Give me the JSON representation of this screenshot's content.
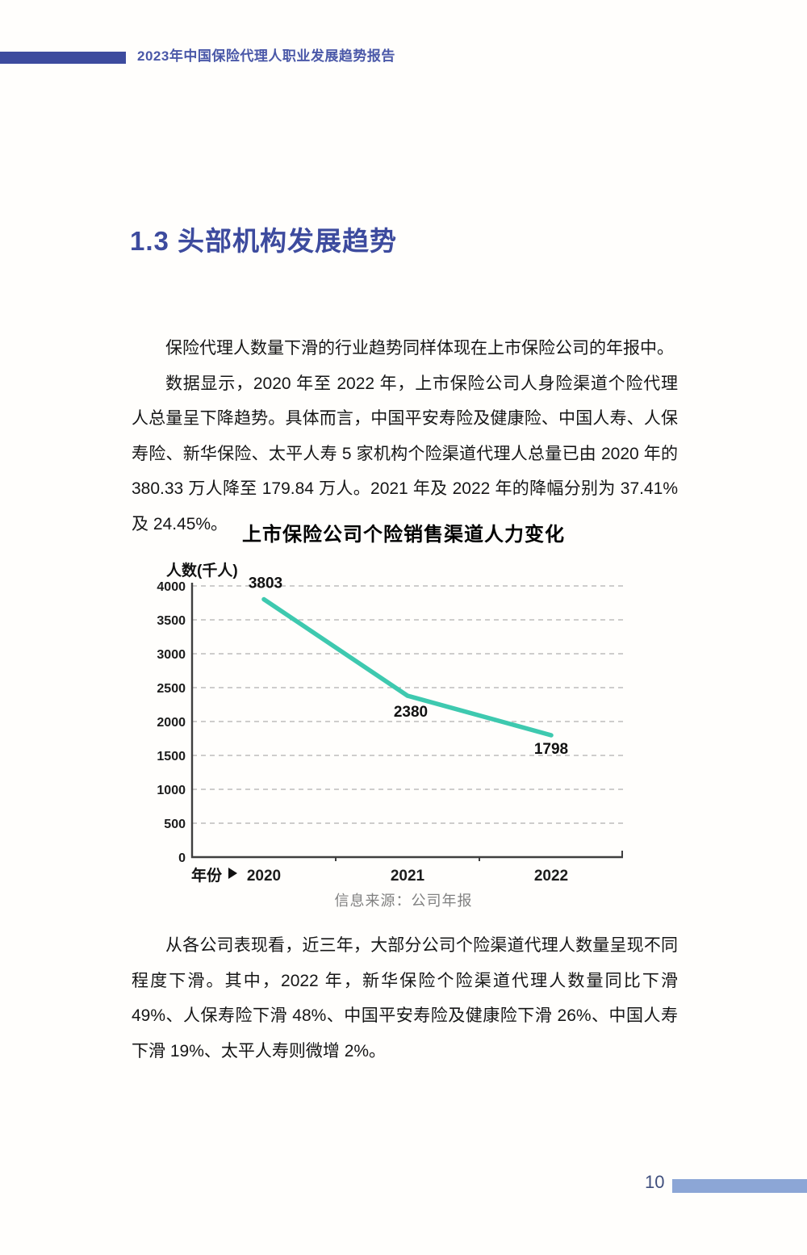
{
  "header": {
    "title": "2023年中国保险代理人职业发展趋势报告"
  },
  "section": {
    "title": "1.3 头部机构发展趋势"
  },
  "paragraphs": {
    "p1": "保险代理人数量下滑的行业趋势同样体现在上市保险公司的年报中。",
    "p2": "数据显示，2020 年至 2022 年，上市保险公司人身险渠道个险代理人总量呈下降趋势。具体而言，中国平安寿险及健康险、中国人寿、人保寿险、新华保险、太平人寿 5 家机构个险渠道代理人总量已由 2020 年的 380.33 万人降至 179.84 万人。2021 年及 2022 年的降幅分别为 37.41%及 24.45%。",
    "p3": "从各公司表现看，近三年，大部分公司个险渠道代理人数量呈现不同程度下滑。其中，2022 年，新华保险个险渠道代理人数量同比下滑 49%、人保寿险下滑 48%、中国平安寿险及健康险下滑 26%、中国人寿下滑 19%、太平人寿则微增 2%。"
  },
  "chart_data": {
    "type": "line",
    "title": "上市保险公司个险销售渠道人力变化",
    "categories": [
      "2020",
      "2021",
      "2022"
    ],
    "values": [
      3803,
      2380,
      1798
    ],
    "ylabel": "人数(千人)",
    "xlabel": "年份",
    "ylim": [
      0,
      4000
    ],
    "ytick_step": 500,
    "grid": "horizontal-dashed",
    "legend": "none",
    "line_color": "#3ec9af",
    "source_note": "信息来源：公司年报"
  },
  "footer": {
    "page_number": "10"
  },
  "colors": {
    "accent_blue": "#3d4b9e",
    "header_text_blue": "#4a58a8",
    "line_teal": "#3ec9af",
    "footer_bar_blue": "#8ca6d6",
    "page_number_navy": "#404f7d",
    "gridline_gray": "#b0b0b0",
    "axis_dark": "#3f3f3f",
    "source_gray": "#808080"
  }
}
